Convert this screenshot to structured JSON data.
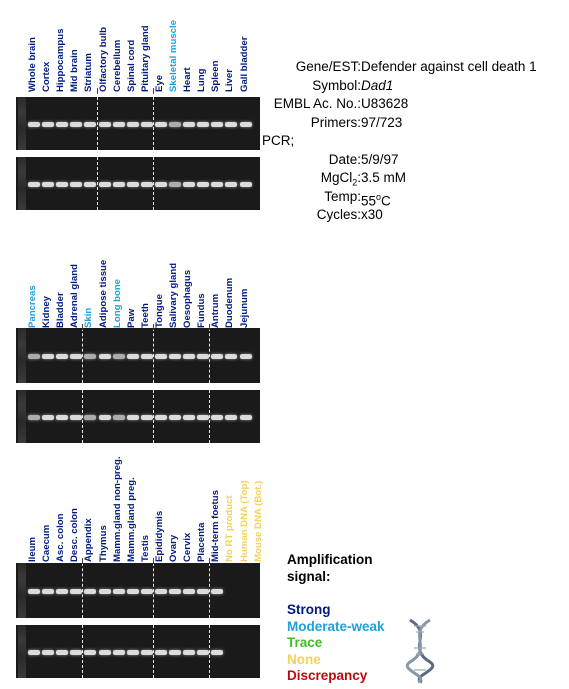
{
  "colors": {
    "strong": "#001a80",
    "moderate": "#1fa0d8",
    "trace": "#3fbf24",
    "none": "#f2d25e",
    "discrepancy": "#b80d0d"
  },
  "panels": [
    {
      "labels": [
        {
          "text": "Whole brain",
          "level": "strong"
        },
        {
          "text": "Cortex",
          "level": "strong"
        },
        {
          "text": "Hippocampus",
          "level": "strong"
        },
        {
          "text": "Mid brain",
          "level": "strong"
        },
        {
          "text": "Striatum",
          "level": "strong"
        },
        {
          "text": "Olfactory bulb",
          "level": "strong"
        },
        {
          "text": "Cerebellum",
          "level": "strong"
        },
        {
          "text": "Spinal cord",
          "level": "strong"
        },
        {
          "text": "Pituitary gland",
          "level": "strong"
        },
        {
          "text": "Eye",
          "level": "strong"
        },
        {
          "text": "Skeletal muscle",
          "level": "moderate"
        },
        {
          "text": "Heart",
          "level": "strong"
        },
        {
          "text": "Lung",
          "level": "strong"
        },
        {
          "text": "Spleen",
          "level": "strong"
        },
        {
          "text": "Liver",
          "level": "strong"
        },
        {
          "text": "Gall bladder",
          "level": "strong"
        }
      ]
    },
    {
      "labels": [
        {
          "text": "Pancreas",
          "level": "moderate"
        },
        {
          "text": "Kidney",
          "level": "strong"
        },
        {
          "text": "Bladder",
          "level": "strong"
        },
        {
          "text": "Adrenal gland",
          "level": "strong"
        },
        {
          "text": "Skin",
          "level": "moderate"
        },
        {
          "text": "Adipose tissue",
          "level": "strong"
        },
        {
          "text": "Long bone",
          "level": "moderate"
        },
        {
          "text": "Paw",
          "level": "strong"
        },
        {
          "text": "Teeth",
          "level": "strong"
        },
        {
          "text": "Tongue",
          "level": "strong"
        },
        {
          "text": "Salivary gland",
          "level": "strong"
        },
        {
          "text": "Oesophagus",
          "level": "strong"
        },
        {
          "text": "Fundus",
          "level": "strong"
        },
        {
          "text": "Antrum",
          "level": "strong"
        },
        {
          "text": "Duodenum",
          "level": "strong"
        },
        {
          "text": "Jejunum",
          "level": "strong"
        }
      ]
    },
    {
      "labels": [
        {
          "text": "Ileum",
          "level": "strong"
        },
        {
          "text": "Caecum",
          "level": "strong"
        },
        {
          "text": "Asc. colon",
          "level": "strong"
        },
        {
          "text": "Desc. colon",
          "level": "strong"
        },
        {
          "text": "Appendix",
          "level": "strong"
        },
        {
          "text": "Thymus",
          "level": "strong"
        },
        {
          "text": "Mamm.gland non-preg.",
          "level": "strong"
        },
        {
          "text": "Mamm.gland preg.",
          "level": "strong"
        },
        {
          "text": "Testis",
          "level": "strong"
        },
        {
          "text": "Epididymis",
          "level": "strong"
        },
        {
          "text": "Ovary",
          "level": "strong"
        },
        {
          "text": "Cervix",
          "level": "strong"
        },
        {
          "text": "Placenta",
          "level": "strong"
        },
        {
          "text": "Mid-term foetus",
          "level": "strong"
        },
        {
          "text": "No RT product",
          "level": "none"
        },
        {
          "text": "Human DNA (Top)",
          "level": "none"
        },
        {
          "text": "Mouse DNA (Bot.)",
          "level": "none"
        }
      ]
    }
  ],
  "info": [
    {
      "key": "Gene/EST:",
      "value": "Defender against cell death 1"
    },
    {
      "key": "Symbol:",
      "value": "Dad1"
    },
    {
      "key": "EMBL Ac. No.:",
      "value": "U83628"
    },
    {
      "key": "Primers:",
      "value": "97/723"
    },
    {
      "key": "PCR;",
      "value": ""
    },
    {
      "key": "Date:",
      "value": "5/9/97"
    },
    {
      "key": "MgCl2:",
      "value": "3.5 mM"
    },
    {
      "key": "Temp:",
      "value": "55oC"
    },
    {
      "key": "Cycles:",
      "value": "x30"
    }
  ],
  "legend": {
    "title1": "Amplification",
    "title2": "signal:",
    "strong": "Strong",
    "moderate": "Moderate-weak",
    "trace": "Trace",
    "none": "None",
    "discrepancy": "Discrepancy"
  },
  "dna_icon": "dna-helix-icon"
}
